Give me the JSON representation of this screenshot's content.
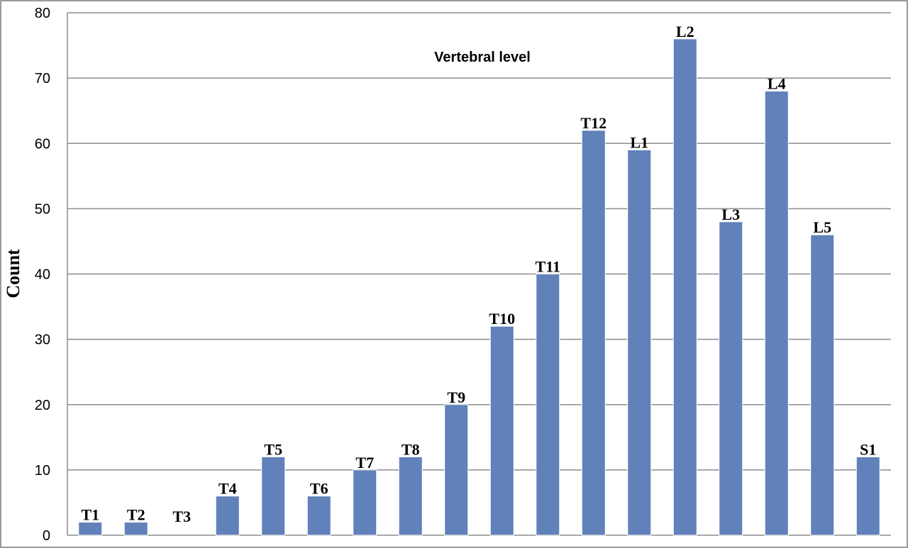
{
  "chart_data": {
    "type": "bar",
    "title": "Vertebral level",
    "xlabel": "",
    "ylabel": "Count",
    "ylim": [
      0,
      80
    ],
    "yticks": [
      0,
      10,
      20,
      30,
      40,
      50,
      60,
      70,
      80
    ],
    "grid": true,
    "legend": "none",
    "bar_color": "#6181BA",
    "grid_color": "#8C8C8C",
    "categories": [
      "T1",
      "T2",
      "T3",
      "T4",
      "T5",
      "T6",
      "T7",
      "T8",
      "T9",
      "T10",
      "T11",
      "T12",
      "L1",
      "L2",
      "L3",
      "L4",
      "L5",
      "S1"
    ],
    "values": [
      2,
      2,
      0,
      6,
      12,
      6,
      10,
      12,
      20,
      32,
      40,
      62,
      59,
      76,
      48,
      68,
      46,
      12
    ]
  }
}
